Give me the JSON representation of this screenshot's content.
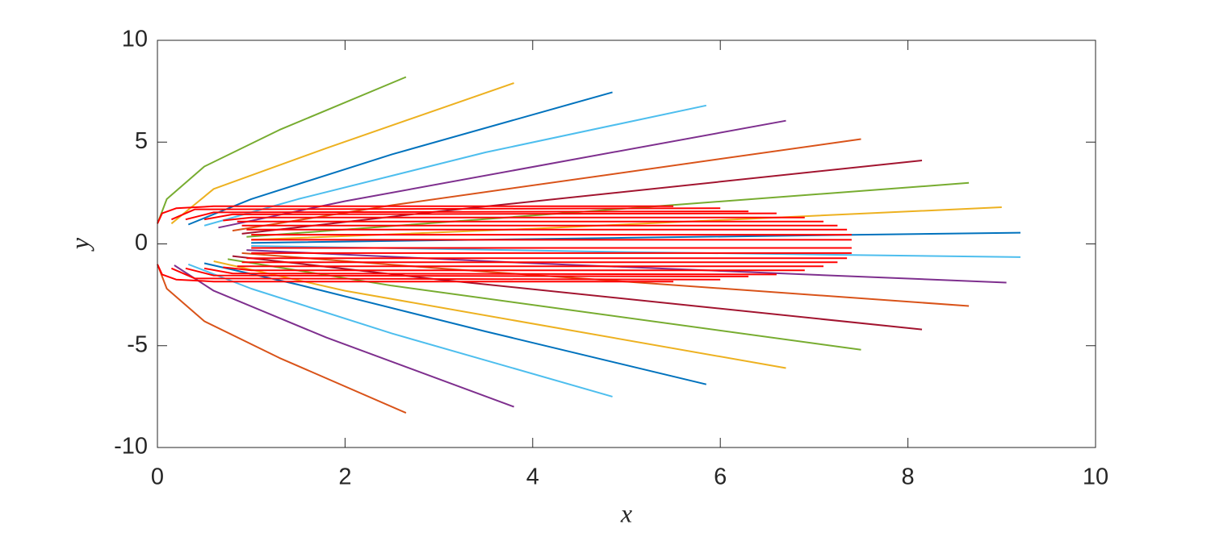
{
  "chart_data": {
    "type": "line",
    "xlabel": "x",
    "ylabel": "y",
    "xlim": [
      0,
      10
    ],
    "ylim": [
      -10,
      10
    ],
    "xticks": [
      0,
      2,
      4,
      6,
      8,
      10
    ],
    "yticks": [
      -10,
      -5,
      0,
      5,
      10
    ],
    "series": [
      {
        "color": "#77AC30",
        "x": [
          0,
          0.1,
          0.5,
          1.3,
          2.65
        ],
        "values": [
          1.0,
          2.2,
          3.8,
          5.6,
          8.2
        ]
      },
      {
        "color": "#EDB120",
        "x": [
          0.15,
          0.6,
          1.8,
          3.8
        ],
        "values": [
          1.0,
          2.7,
          4.7,
          7.9
        ]
      },
      {
        "color": "#0072BD",
        "x": [
          0.33,
          1.0,
          2.5,
          4.85
        ],
        "values": [
          0.95,
          2.2,
          4.4,
          7.45
        ]
      },
      {
        "color": "#4DBEEE",
        "x": [
          0.5,
          1.5,
          3.5,
          5.85
        ],
        "values": [
          0.9,
          2.2,
          4.5,
          6.8
        ]
      },
      {
        "color": "#7E2F8E",
        "x": [
          0.65,
          2.0,
          6.7
        ],
        "values": [
          0.8,
          2.1,
          6.05
        ]
      },
      {
        "color": "#D95319",
        "x": [
          0.8,
          2.5,
          7.5
        ],
        "values": [
          0.65,
          1.9,
          5.15
        ]
      },
      {
        "color": "#A2142F",
        "x": [
          0.9,
          3,
          8.15
        ],
        "values": [
          0.5,
          1.6,
          4.1
        ]
      },
      {
        "color": "#77AC30",
        "x": [
          0.95,
          3,
          8.65
        ],
        "values": [
          0.35,
          1.05,
          3.0
        ]
      },
      {
        "color": "#EDB120",
        "x": [
          1.0,
          4,
          9.0
        ],
        "values": [
          0.2,
          0.75,
          1.8
        ]
      },
      {
        "color": "#0072BD",
        "x": [
          1.0,
          5,
          9.2
        ],
        "values": [
          0.05,
          0.3,
          0.55
        ]
      },
      {
        "color": "#4DBEEE",
        "x": [
          1.0,
          5,
          9.2
        ],
        "values": [
          -0.1,
          -0.4,
          -0.65
        ]
      },
      {
        "color": "#7E2F8E",
        "x": [
          0.95,
          4,
          9.05
        ],
        "values": [
          -0.3,
          -0.95,
          -1.9
        ]
      },
      {
        "color": "#D95319",
        "x": [
          0.9,
          3,
          8.65
        ],
        "values": [
          -0.45,
          -1.2,
          -3.05
        ]
      },
      {
        "color": "#A2142F",
        "x": [
          0.8,
          3,
          8.15
        ],
        "values": [
          -0.6,
          -1.75,
          -4.2
        ]
      },
      {
        "color": "#77AC30",
        "x": [
          0.75,
          2.5,
          7.5
        ],
        "values": [
          -0.75,
          -2.05,
          -5.2
        ]
      },
      {
        "color": "#EDB120",
        "x": [
          0.6,
          2,
          6.7
        ],
        "values": [
          -0.85,
          -2.3,
          -6.1
        ]
      },
      {
        "color": "#0072BD",
        "x": [
          0.5,
          1.5,
          3.5,
          5.85
        ],
        "values": [
          -0.95,
          -2.0,
          -4.3,
          -6.9
        ]
      },
      {
        "color": "#4DBEEE",
        "x": [
          0.33,
          1.0,
          2.5,
          4.85
        ],
        "values": [
          -1.0,
          -2.2,
          -4.4,
          -7.5
        ]
      },
      {
        "color": "#7E2F8E",
        "x": [
          0.18,
          0.6,
          1.8,
          3.8
        ],
        "values": [
          -1.05,
          -2.3,
          -4.6,
          -8.0
        ]
      },
      {
        "color": "#D95319",
        "x": [
          0,
          0.1,
          0.5,
          1.3,
          2.65
        ],
        "values": [
          -1.0,
          -2.2,
          -3.8,
          -5.6,
          -8.3
        ]
      },
      {
        "color": "#FF0000",
        "x": [
          0,
          0.05,
          0.2,
          0.6,
          5.5
        ],
        "values": [
          1.0,
          1.5,
          1.75,
          1.85,
          1.85
        ]
      },
      {
        "color": "#FF0000",
        "x": [
          0.15,
          0.4,
          6.0
        ],
        "values": [
          1.2,
          1.7,
          1.75
        ]
      },
      {
        "color": "#FF0000",
        "x": [
          0.3,
          0.6,
          6.3
        ],
        "values": [
          1.2,
          1.55,
          1.6
        ]
      },
      {
        "color": "#FF0000",
        "x": [
          0.5,
          0.8,
          6.6
        ],
        "values": [
          1.2,
          1.45,
          1.5
        ]
      },
      {
        "color": "#FF0000",
        "x": [
          0.7,
          1.0,
          6.9
        ],
        "values": [
          1.15,
          1.3,
          1.3
        ]
      },
      {
        "color": "#FF0000",
        "x": [
          0.85,
          7.1
        ],
        "values": [
          1.1,
          1.1
        ]
      },
      {
        "color": "#FF0000",
        "x": [
          0.9,
          7.25
        ],
        "values": [
          0.9,
          0.9
        ]
      },
      {
        "color": "#FF0000",
        "x": [
          0.95,
          7.35
        ],
        "values": [
          0.7,
          0.7
        ]
      },
      {
        "color": "#FF0000",
        "x": [
          1.0,
          7.4
        ],
        "values": [
          0.45,
          0.45
        ]
      },
      {
        "color": "#FF0000",
        "x": [
          1.0,
          7.4
        ],
        "values": [
          0.2,
          0.2
        ]
      },
      {
        "color": "#FF0000",
        "x": [
          0,
          0.05,
          0.2,
          0.6,
          5.5
        ],
        "values": [
          -1.0,
          -1.5,
          -1.75,
          -1.85,
          -1.85
        ]
      },
      {
        "color": "#FF0000",
        "x": [
          0.15,
          0.4,
          6.0
        ],
        "values": [
          -1.2,
          -1.7,
          -1.75
        ]
      },
      {
        "color": "#FF0000",
        "x": [
          0.3,
          0.6,
          6.3
        ],
        "values": [
          -1.2,
          -1.55,
          -1.6
        ]
      },
      {
        "color": "#FF0000",
        "x": [
          0.5,
          0.8,
          6.6
        ],
        "values": [
          -1.2,
          -1.45,
          -1.5
        ]
      },
      {
        "color": "#FF0000",
        "x": [
          0.7,
          1.0,
          6.9
        ],
        "values": [
          -1.15,
          -1.3,
          -1.3
        ]
      },
      {
        "color": "#FF0000",
        "x": [
          0.85,
          7.1
        ],
        "values": [
          -1.1,
          -1.1
        ]
      },
      {
        "color": "#FF0000",
        "x": [
          0.9,
          7.25
        ],
        "values": [
          -0.9,
          -0.9
        ]
      },
      {
        "color": "#FF0000",
        "x": [
          0.95,
          7.35
        ],
        "values": [
          -0.7,
          -0.7
        ]
      },
      {
        "color": "#FF0000",
        "x": [
          1.0,
          7.4
        ],
        "values": [
          -0.45,
          -0.45
        ]
      },
      {
        "color": "#FF0000",
        "x": [
          1.0,
          7.4
        ],
        "values": [
          -0.2,
          -0.2
        ]
      }
    ]
  }
}
